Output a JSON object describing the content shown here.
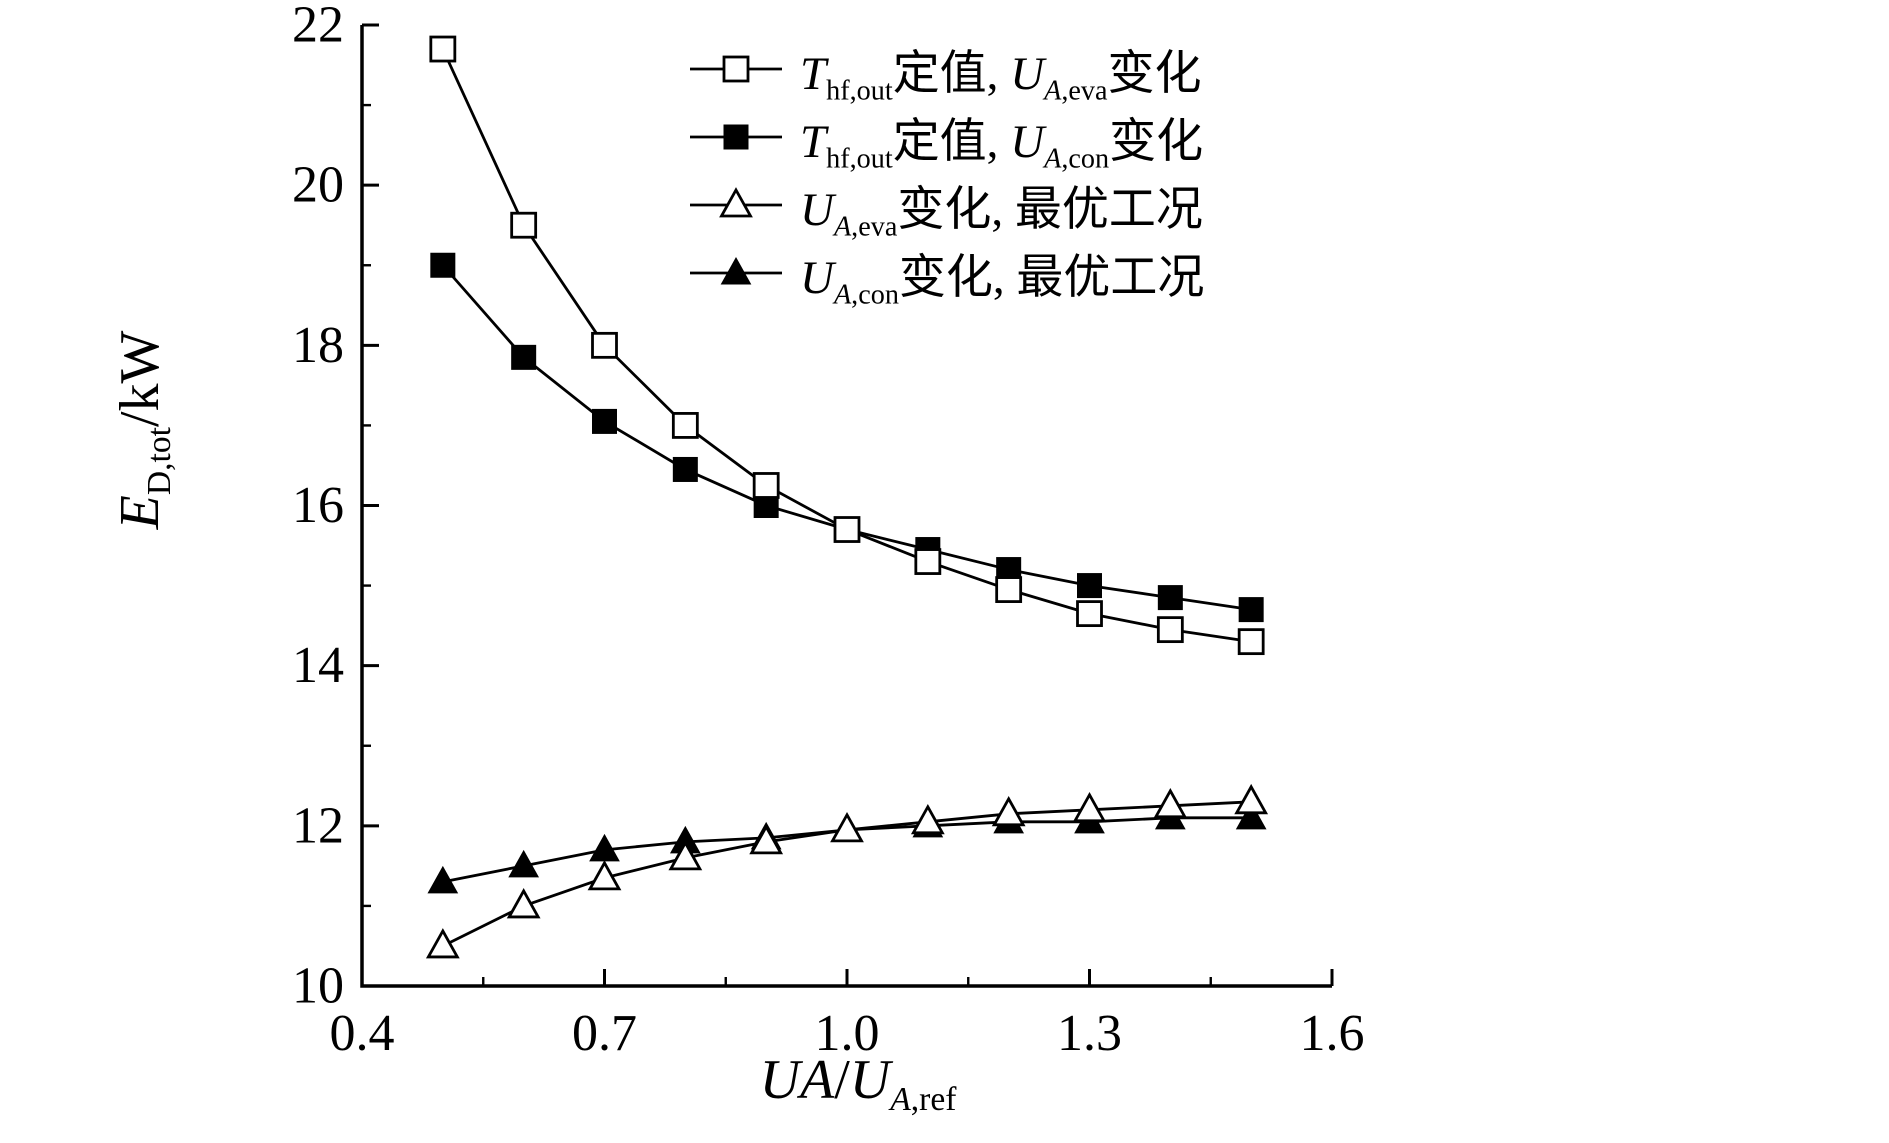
{
  "chart_data": {
    "type": "line",
    "x": [
      0.5,
      0.6,
      0.7,
      0.8,
      0.9,
      1.0,
      1.1,
      1.2,
      1.3,
      1.4,
      1.5
    ],
    "series": [
      {
        "name": "T_hf,out定值, U_A,eva变化",
        "marker": "square-open",
        "values": [
          21.7,
          19.5,
          18.0,
          17.0,
          16.25,
          15.7,
          15.3,
          14.95,
          14.65,
          14.45,
          14.3
        ]
      },
      {
        "name": "T_hf,out定值, U_A,con变化",
        "marker": "square-filled",
        "values": [
          19.0,
          17.85,
          17.05,
          16.45,
          16.0,
          15.7,
          15.45,
          15.2,
          15.0,
          14.85,
          14.7
        ]
      },
      {
        "name": "U_A,eva变化, 最优工况",
        "marker": "triangle-open",
        "values": [
          10.5,
          11.0,
          11.35,
          11.6,
          11.8,
          11.95,
          12.05,
          12.15,
          12.2,
          12.25,
          12.3
        ]
      },
      {
        "name": "U_A,con变化, 最优工况",
        "marker": "triangle-filled",
        "values": [
          11.3,
          11.5,
          11.7,
          11.8,
          11.85,
          11.95,
          12.0,
          12.05,
          12.05,
          12.1,
          12.1
        ]
      }
    ],
    "title": "",
    "xlabel": "UA/U_A,ref",
    "ylabel": "E_D,tot/kW",
    "xlim": [
      0.4,
      1.6
    ],
    "ylim": [
      10,
      22
    ],
    "x_ticks": [
      0.4,
      0.7,
      1.0,
      1.3,
      1.6
    ],
    "x_tick_labels": [
      "0.4",
      "0.7",
      "1.0",
      "1.3",
      "1.6"
    ],
    "y_ticks": [
      10,
      12,
      14,
      16,
      18,
      20,
      22
    ],
    "y_tick_labels": [
      "10",
      "12",
      "14",
      "16",
      "18",
      "20",
      "22"
    ],
    "x_minor_ticks": [
      0.55,
      0.85,
      1.15,
      1.45
    ],
    "y_minor_ticks": [
      11,
      13,
      15,
      17,
      19,
      21
    ],
    "grid": false,
    "legend_position": "top-right-inside",
    "line_color": "#000000",
    "background_color": "#ffffff"
  },
  "labels": {
    "y": {
      "var": "E",
      "sub": "D,tot",
      "unit": "/kW"
    },
    "x": {
      "var1": "UA",
      "slash": "/",
      "var2": "U",
      "sub_i": "A",
      "sub_r": ",ref"
    }
  },
  "legend": {
    "items": [
      {
        "marker": "square-open",
        "var1": "T",
        "sub1_i": "",
        "sub1_r": "hf,out",
        "text1": "定值, ",
        "var2": "U",
        "sub2_i": "A",
        "sub2_r": ",eva",
        "text2": "变化"
      },
      {
        "marker": "square-filled",
        "var1": "T",
        "sub1_i": "",
        "sub1_r": "hf,out",
        "text1": "定值, ",
        "var2": "U",
        "sub2_i": "A",
        "sub2_r": ",con",
        "text2": "变化"
      },
      {
        "marker": "triangle-open",
        "var1": "U",
        "sub1_i": "A",
        "sub1_r": ",eva",
        "text1": "变化, 最优工况",
        "var2": "",
        "sub2_i": "",
        "sub2_r": "",
        "text2": ""
      },
      {
        "marker": "triangle-filled",
        "var1": "U",
        "sub1_i": "A",
        "sub1_r": ",con",
        "text1": "变化, 最优工况",
        "var2": "",
        "sub2_i": "",
        "sub2_r": "",
        "text2": ""
      }
    ]
  }
}
